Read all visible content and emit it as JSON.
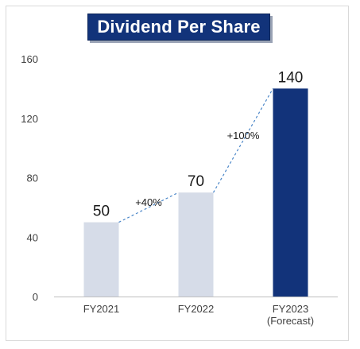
{
  "chart_data": {
    "type": "bar",
    "title": "Dividend Per Share",
    "categories": [
      [
        "FY2021"
      ],
      [
        "FY2022"
      ],
      [
        "FY2023",
        "(Forecast)"
      ]
    ],
    "values": [
      50,
      70,
      140
    ],
    "value_labels": [
      "50",
      "70",
      "140"
    ],
    "bar_colors": [
      "#d6dce8",
      "#d6dce8",
      "#12337a"
    ],
    "ylim": [
      0,
      160
    ],
    "yticks": [
      0,
      40,
      80,
      120,
      160
    ],
    "grid": false,
    "annotations": [
      {
        "from": 0,
        "to": 1,
        "label": "+40%"
      },
      {
        "from": 1,
        "to": 2,
        "label": "+100%"
      }
    ],
    "connector_color": "#4a86c8"
  }
}
